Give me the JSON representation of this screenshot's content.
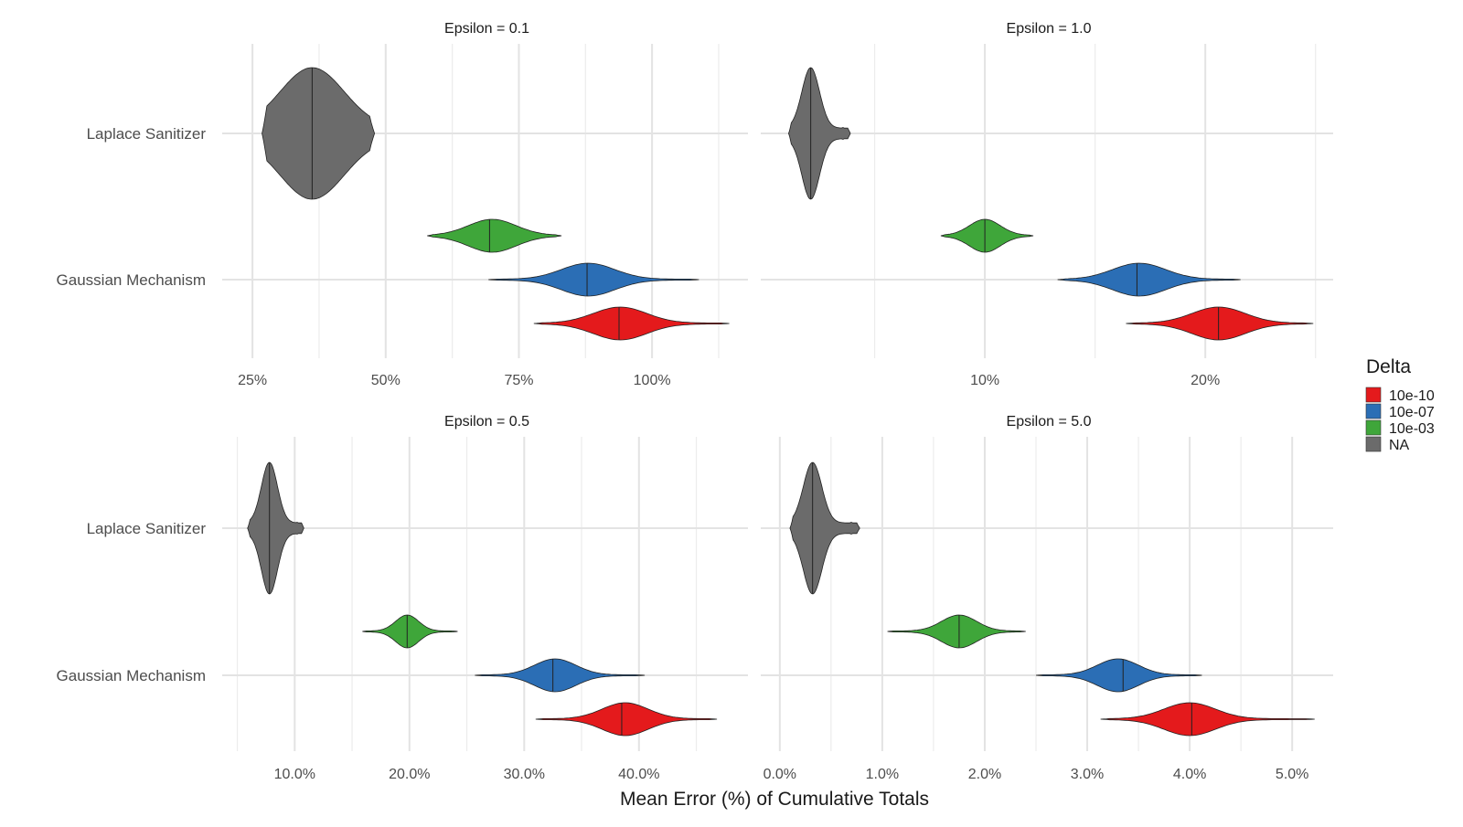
{
  "chart_data": {
    "type": "violin",
    "x_axis_title": "Mean Error (%) of Cumulative Totals",
    "categories": [
      "Laplace Sanitizer",
      "Gaussian Mechanism"
    ],
    "legend": {
      "title": "Delta",
      "position": "right",
      "items": [
        {
          "label": "10e-10",
          "color": "#e41a1c"
        },
        {
          "label": "10e-07",
          "color": "#2b6eb5"
        },
        {
          "label": "10e-03",
          "color": "#3fa63a"
        },
        {
          "label": "NA",
          "color": "#6b6b6b"
        }
      ]
    },
    "panels": [
      {
        "title": "Epsilon = 0.1",
        "xlim": [
          20,
          118
        ],
        "ticks": [
          {
            "v": 25,
            "label": "25%"
          },
          {
            "v": 50,
            "label": "50%"
          },
          {
            "v": 75,
            "label": "75%"
          },
          {
            "v": 100,
            "label": "100%"
          }
        ],
        "violins": [
          {
            "category": "Laplace Sanitizer",
            "delta": "NA",
            "min": 26.8,
            "median": 36.2,
            "max": 47.9,
            "mode": 36.2,
            "spread": 6
          },
          {
            "category": "Gaussian Mechanism",
            "delta": "10e-03",
            "min": 57.8,
            "median": 69.5,
            "max": 83.0,
            "mode": 70.0,
            "spread": 4.5
          },
          {
            "category": "Gaussian Mechanism",
            "delta": "10e-07",
            "min": 69.3,
            "median": 87.8,
            "max": 108.8,
            "mode": 88.0,
            "spread": 5
          },
          {
            "category": "Gaussian Mechanism",
            "delta": "10e-10",
            "min": 77.8,
            "median": 93.8,
            "max": 114.5,
            "mode": 94.0,
            "spread": 5
          }
        ]
      },
      {
        "title": "Epsilon = 1.0",
        "xlim": [
          0,
          25.8
        ],
        "ticks": [
          {
            "v": 10,
            "label": "10%"
          },
          {
            "v": 20,
            "label": "20%"
          }
        ],
        "violins": [
          {
            "category": "Laplace Sanitizer",
            "delta": "NA",
            "min": 1.1,
            "median": 2.1,
            "max": 3.9,
            "mode": 2.1,
            "spread": 0.4
          },
          {
            "category": "Gaussian Mechanism",
            "delta": "10e-03",
            "min": 8.0,
            "median": 10.0,
            "max": 12.2,
            "mode": 10.0,
            "spread": 0.7
          },
          {
            "category": "Gaussian Mechanism",
            "delta": "10e-07",
            "min": 13.3,
            "median": 16.9,
            "max": 21.6,
            "mode": 17.0,
            "spread": 1.2
          },
          {
            "category": "Gaussian Mechanism",
            "delta": "10e-10",
            "min": 16.4,
            "median": 20.6,
            "max": 24.9,
            "mode": 20.6,
            "spread": 1.2
          }
        ]
      },
      {
        "title": "Epsilon = 0.5",
        "xlim": [
          4.0,
          49.5
        ],
        "ticks": [
          {
            "v": 10,
            "label": "10.0%"
          },
          {
            "v": 20,
            "label": "20.0%"
          },
          {
            "v": 30,
            "label": "30.0%"
          },
          {
            "v": 40,
            "label": "40.0%"
          }
        ],
        "violins": [
          {
            "category": "Laplace Sanitizer",
            "delta": "NA",
            "min": 5.9,
            "median": 7.8,
            "max": 10.8,
            "mode": 7.8,
            "spread": 0.7
          },
          {
            "category": "Gaussian Mechanism",
            "delta": "10e-03",
            "min": 15.9,
            "median": 19.8,
            "max": 24.2,
            "mode": 19.8,
            "spread": 1.0
          },
          {
            "category": "Gaussian Mechanism",
            "delta": "10e-07",
            "min": 25.7,
            "median": 32.5,
            "max": 40.5,
            "mode": 32.7,
            "spread": 1.8
          },
          {
            "category": "Gaussian Mechanism",
            "delta": "10e-10",
            "min": 31.0,
            "median": 38.5,
            "max": 46.8,
            "mode": 38.8,
            "spread": 2.0
          }
        ]
      },
      {
        "title": "Epsilon = 5.0",
        "xlim": [
          -0.15,
          5.4
        ],
        "ticks": [
          {
            "v": 0,
            "label": "0.0%"
          },
          {
            "v": 1,
            "label": "1.0%"
          },
          {
            "v": 2,
            "label": "2.0%"
          },
          {
            "v": 3,
            "label": "3.0%"
          },
          {
            "v": 4,
            "label": "4.0%"
          },
          {
            "v": 5,
            "label": "5.0%"
          }
        ],
        "violins": [
          {
            "category": "Laplace Sanitizer",
            "delta": "NA",
            "min": 0.1,
            "median": 0.32,
            "max": 0.78,
            "mode": 0.32,
            "spread": 0.09
          },
          {
            "category": "Gaussian Mechanism",
            "delta": "10e-03",
            "min": 1.05,
            "median": 1.75,
            "max": 2.4,
            "mode": 1.75,
            "spread": 0.17
          },
          {
            "category": "Gaussian Mechanism",
            "delta": "10e-07",
            "min": 2.5,
            "median": 3.35,
            "max": 4.12,
            "mode": 3.3,
            "spread": 0.2
          },
          {
            "category": "Gaussian Mechanism",
            "delta": "10e-10",
            "min": 3.13,
            "median": 4.02,
            "max": 5.22,
            "mode": 4.0,
            "spread": 0.25
          }
        ]
      }
    ]
  }
}
